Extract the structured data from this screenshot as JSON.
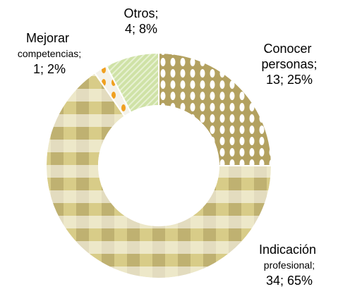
{
  "chart_data": {
    "type": "donut",
    "categories": [
      "Conocer personas;",
      "Indicación profesional;",
      "Mejorar competencias;",
      "Otros;"
    ],
    "values": [
      13,
      34,
      1,
      4
    ],
    "value_labels": [
      "13; 25%",
      "34; 65%",
      "1; 2%",
      "4; 8%"
    ],
    "colors": [
      "#b3a160",
      "#d8cc88",
      "#f4f2ea",
      "#cfe2a6"
    ]
  }
}
